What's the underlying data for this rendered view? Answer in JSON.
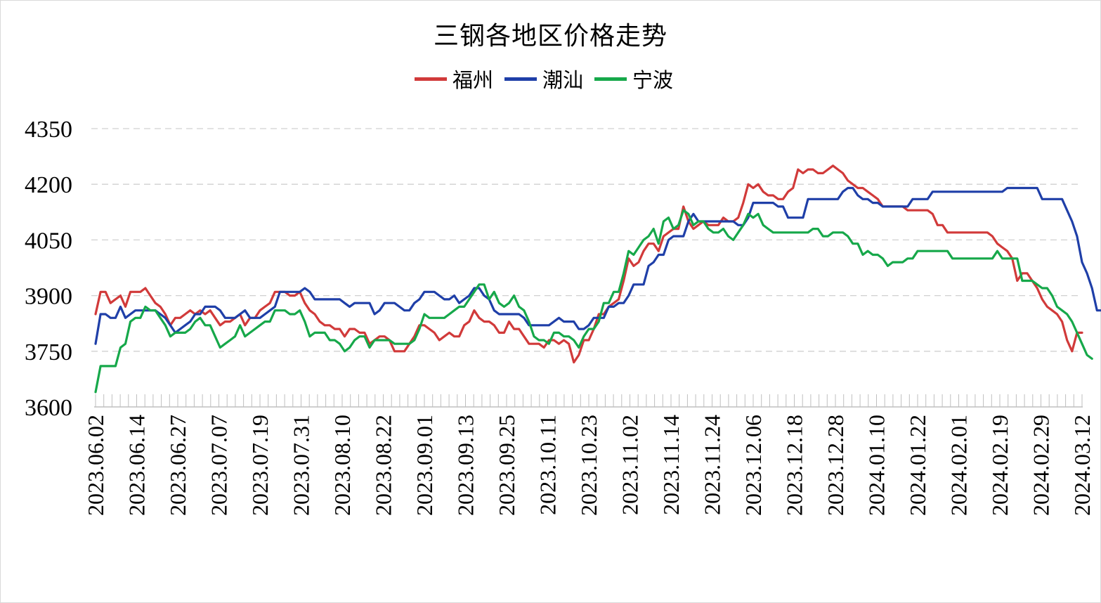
{
  "chart_data": {
    "type": "line",
    "title": "三钢各地区价格走势",
    "xlabel": "",
    "ylabel": "",
    "ylim": [
      3600,
      4350
    ],
    "yticks": [
      3600,
      3750,
      3900,
      4050,
      4200,
      4350
    ],
    "grid": "horizontal-dashed",
    "legend": "top-center",
    "x_tick_labels": [
      "2023.06.02",
      "2023.06.14",
      "2023.06.27",
      "2023.07.07",
      "2023.07.19",
      "2023.07.31",
      "2023.08.10",
      "2023.08.22",
      "2023.09.01",
      "2023.09.13",
      "2023.09.25",
      "2023.10.11",
      "2023.10.23",
      "2023.11.02",
      "2023.11.14",
      "2023.11.24",
      "2023.12.06",
      "2023.12.18",
      "2023.12.28",
      "2024.01.10",
      "2024.01.22",
      "2024.02.01",
      "2024.02.19",
      "2024.02.29",
      "2024.03.12"
    ],
    "series": [
      {
        "name": "福州",
        "color": "#d13a3a",
        "values": [
          3850,
          3910,
          3910,
          3880,
          3890,
          3900,
          3870,
          3910,
          3910,
          3910,
          3920,
          3900,
          3880,
          3870,
          3850,
          3820,
          3840,
          3840,
          3850,
          3860,
          3850,
          3860,
          3850,
          3860,
          3840,
          3820,
          3830,
          3830,
          3840,
          3850,
          3820,
          3840,
          3840,
          3860,
          3870,
          3880,
          3910,
          3910,
          3910,
          3900,
          3900,
          3910,
          3880,
          3860,
          3850,
          3830,
          3820,
          3820,
          3810,
          3810,
          3790,
          3810,
          3810,
          3800,
          3800,
          3770,
          3780,
          3790,
          3790,
          3780,
          3750,
          3750,
          3750,
          3770,
          3790,
          3820,
          3820,
          3810,
          3800,
          3780,
          3790,
          3800,
          3790,
          3790,
          3820,
          3830,
          3860,
          3840,
          3830,
          3830,
          3820,
          3800,
          3800,
          3830,
          3810,
          3810,
          3790,
          3770,
          3770,
          3770,
          3760,
          3780,
          3780,
          3770,
          3780,
          3770,
          3720,
          3740,
          3780,
          3780,
          3810,
          3850,
          3850,
          3870,
          3880,
          3890,
          3940,
          4000,
          3980,
          3990,
          4020,
          4040,
          4040,
          4020,
          4060,
          4070,
          4080,
          4080,
          4140,
          4100,
          4080,
          4090,
          4100,
          4090,
          4090,
          4090,
          4110,
          4100,
          4100,
          4110,
          4150,
          4200,
          4190,
          4200,
          4180,
          4170,
          4170,
          4160,
          4160,
          4180,
          4190,
          4240,
          4230,
          4240,
          4240,
          4230,
          4230,
          4240,
          4250,
          4240,
          4230,
          4210,
          4200,
          4190,
          4190,
          4180,
          4170,
          4160,
          4140,
          4140,
          4140,
          4140,
          4140,
          4130,
          4130,
          4130,
          4130,
          4130,
          4120,
          4090,
          4090,
          4070,
          4070,
          4070,
          4070,
          4070,
          4070,
          4070,
          4070,
          4070,
          4060,
          4040,
          4030,
          4020,
          4000,
          3940,
          3960,
          3960,
          3940,
          3920,
          3890,
          3870,
          3860,
          3850,
          3830,
          3780,
          3750,
          3800,
          3800
        ]
      },
      {
        "name": "潮汕",
        "color": "#1f3fa8",
        "values": [
          3770,
          3850,
          3850,
          3840,
          3840,
          3870,
          3840,
          3850,
          3860,
          3860,
          3860,
          3860,
          3860,
          3850,
          3840,
          3820,
          3800,
          3810,
          3820,
          3830,
          3850,
          3850,
          3870,
          3870,
          3870,
          3860,
          3840,
          3840,
          3840,
          3850,
          3860,
          3840,
          3840,
          3840,
          3850,
          3860,
          3870,
          3910,
          3910,
          3910,
          3910,
          3910,
          3920,
          3910,
          3890,
          3890,
          3890,
          3890,
          3890,
          3890,
          3880,
          3870,
          3880,
          3880,
          3880,
          3880,
          3850,
          3860,
          3880,
          3880,
          3880,
          3870,
          3860,
          3860,
          3880,
          3890,
          3910,
          3910,
          3910,
          3900,
          3890,
          3890,
          3900,
          3880,
          3890,
          3900,
          3920,
          3920,
          3900,
          3890,
          3860,
          3850,
          3850,
          3850,
          3850,
          3850,
          3840,
          3820,
          3820,
          3820,
          3820,
          3820,
          3830,
          3840,
          3830,
          3830,
          3830,
          3810,
          3810,
          3820,
          3840,
          3840,
          3840,
          3870,
          3870,
          3880,
          3880,
          3900,
          3930,
          3930,
          3930,
          3980,
          3990,
          4010,
          4010,
          4050,
          4060,
          4060,
          4060,
          4100,
          4120,
          4100,
          4100,
          4100,
          4100,
          4100,
          4100,
          4100,
          4100,
          4090,
          4090,
          4110,
          4150,
          4150,
          4150,
          4150,
          4150,
          4140,
          4140,
          4110,
          4110,
          4110,
          4110,
          4160,
          4160,
          4160,
          4160,
          4160,
          4160,
          4160,
          4180,
          4190,
          4190,
          4170,
          4160,
          4160,
          4150,
          4150,
          4140,
          4140,
          4140,
          4140,
          4140,
          4140,
          4160,
          4160,
          4160,
          4160,
          4180,
          4180,
          4180,
          4180,
          4180,
          4180,
          4180,
          4180,
          4180,
          4180,
          4180,
          4180,
          4180,
          4180,
          4180,
          4190,
          4190,
          4190,
          4190,
          4190,
          4190,
          4190,
          4160,
          4160,
          4160,
          4160,
          4160,
          4130,
          4100,
          4060,
          3990,
          3960,
          3920,
          3860,
          3860,
          3840
        ]
      },
      {
        "name": "宁波",
        "color": "#16a84a",
        "values": [
          3640,
          3710,
          3710,
          3710,
          3710,
          3760,
          3770,
          3830,
          3840,
          3840,
          3870,
          3860,
          3860,
          3840,
          3820,
          3790,
          3800,
          3800,
          3800,
          3810,
          3830,
          3840,
          3820,
          3820,
          3790,
          3760,
          3770,
          3780,
          3790,
          3820,
          3790,
          3800,
          3810,
          3820,
          3830,
          3830,
          3860,
          3860,
          3860,
          3850,
          3850,
          3860,
          3830,
          3790,
          3800,
          3800,
          3800,
          3780,
          3780,
          3770,
          3750,
          3760,
          3780,
          3790,
          3790,
          3760,
          3780,
          3780,
          3780,
          3780,
          3770,
          3770,
          3770,
          3770,
          3780,
          3810,
          3850,
          3840,
          3840,
          3840,
          3840,
          3850,
          3860,
          3870,
          3870,
          3890,
          3910,
          3930,
          3930,
          3890,
          3910,
          3880,
          3870,
          3880,
          3900,
          3870,
          3860,
          3830,
          3790,
          3780,
          3780,
          3770,
          3800,
          3800,
          3790,
          3790,
          3780,
          3760,
          3790,
          3810,
          3810,
          3830,
          3880,
          3880,
          3910,
          3910,
          3960,
          4020,
          4010,
          4030,
          4050,
          4060,
          4080,
          4040,
          4100,
          4110,
          4080,
          4090,
          4130,
          4120,
          4090,
          4100,
          4100,
          4080,
          4070,
          4070,
          4080,
          4060,
          4050,
          4070,
          4090,
          4120,
          4110,
          4120,
          4090,
          4080,
          4070,
          4070,
          4070,
          4070,
          4070,
          4070,
          4070,
          4070,
          4080,
          4080,
          4060,
          4060,
          4070,
          4070,
          4070,
          4060,
          4040,
          4040,
          4010,
          4020,
          4010,
          4010,
          4000,
          3980,
          3990,
          3990,
          3990,
          4000,
          4000,
          4020,
          4020,
          4020,
          4020,
          4020,
          4020,
          4020,
          4000,
          4000,
          4000,
          4000,
          4000,
          4000,
          4000,
          4000,
          4000,
          4020,
          4000,
          4000,
          4000,
          4000,
          3940,
          3940,
          3940,
          3930,
          3920,
          3920,
          3900,
          3870,
          3860,
          3850,
          3830,
          3800,
          3770,
          3740,
          3730
        ]
      }
    ]
  }
}
